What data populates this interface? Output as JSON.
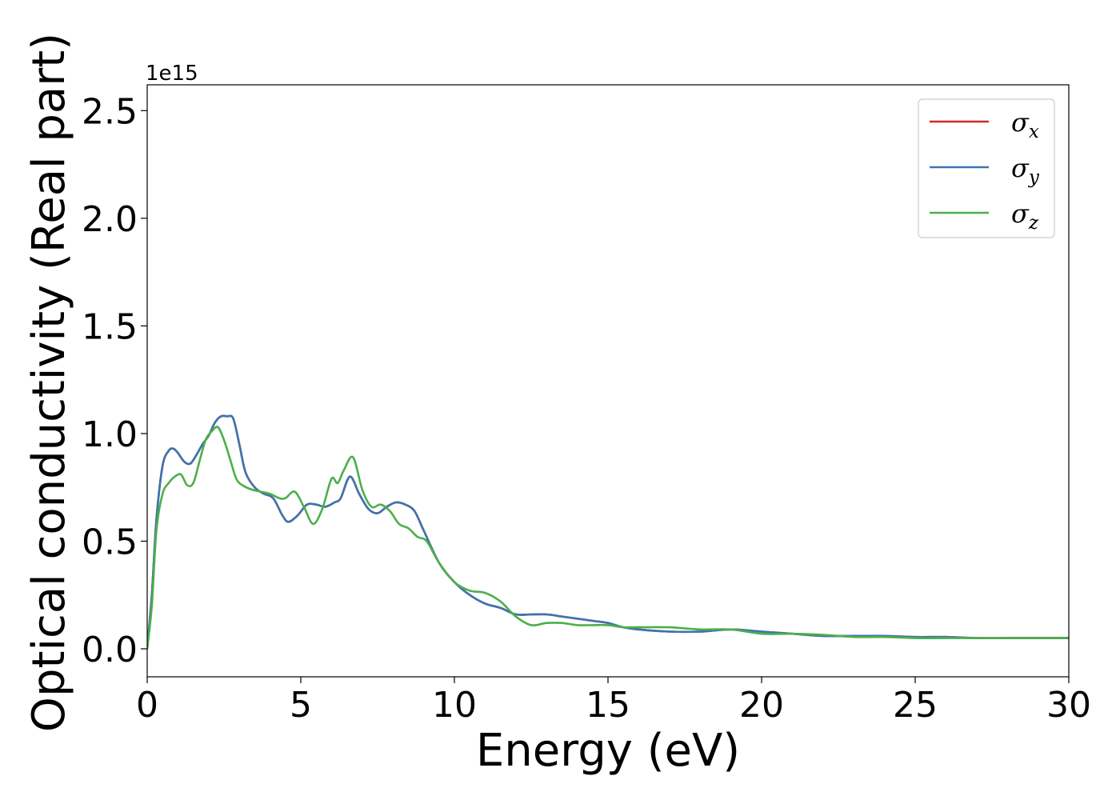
{
  "chart_data": {
    "type": "line",
    "xlabel": "Energy (eV)",
    "ylabel": "Optical conductivity (Real part)",
    "y_offset_text": "1e15",
    "xlim": [
      0,
      30
    ],
    "ylim": [
      -0.13,
      2.62
    ],
    "x_ticks": [
      0,
      5,
      10,
      15,
      20,
      25,
      30
    ],
    "x_tick_labels": [
      "0",
      "5",
      "10",
      "15",
      "20",
      "25",
      "30"
    ],
    "y_ticks": [
      0.0,
      0.5,
      1.0,
      1.5,
      2.0,
      2.5
    ],
    "y_tick_labels": [
      "0.0",
      "0.5",
      "1.0",
      "1.5",
      "2.0",
      "2.5"
    ],
    "grid": false,
    "legend_position": "top-right",
    "series": [
      {
        "name": "σx",
        "base": "σ",
        "sub": "x",
        "color": "#d62728",
        "x": [
          0,
          0.15,
          0.3,
          0.5,
          0.7,
          0.85,
          1.0,
          1.2,
          1.4,
          1.6,
          1.8,
          2.0,
          2.2,
          2.4,
          2.6,
          2.8,
          3.0,
          3.2,
          3.5,
          3.8,
          4.1,
          4.4,
          4.6,
          4.9,
          5.2,
          5.5,
          5.8,
          6.1,
          6.3,
          6.6,
          6.9,
          7.2,
          7.5,
          7.8,
          8.1,
          8.4,
          8.7,
          9.0,
          9.5,
          10.0,
          10.5,
          11.0,
          11.5,
          12.0,
          12.5,
          13.0,
          13.5,
          14.0,
          14.5,
          15.0,
          15.5,
          16.0,
          17.0,
          18.0,
          19.0,
          20.0,
          21.0,
          22.0,
          23.0,
          24.0,
          25.0,
          26.0,
          27.0,
          28.0,
          29.0,
          30.0
        ],
        "y": [
          0.0,
          0.25,
          0.6,
          0.85,
          0.92,
          0.93,
          0.91,
          0.87,
          0.86,
          0.9,
          0.95,
          0.99,
          1.05,
          1.08,
          1.08,
          1.07,
          0.95,
          0.82,
          0.75,
          0.72,
          0.7,
          0.62,
          0.59,
          0.62,
          0.67,
          0.67,
          0.66,
          0.68,
          0.7,
          0.8,
          0.72,
          0.65,
          0.63,
          0.66,
          0.68,
          0.67,
          0.64,
          0.55,
          0.4,
          0.31,
          0.25,
          0.21,
          0.19,
          0.16,
          0.16,
          0.16,
          0.15,
          0.14,
          0.13,
          0.12,
          0.1,
          0.09,
          0.08,
          0.08,
          0.09,
          0.08,
          0.07,
          0.06,
          0.06,
          0.06,
          0.055,
          0.055,
          0.05,
          0.05,
          0.05,
          0.05
        ]
      },
      {
        "name": "σy",
        "base": "σ",
        "sub": "y",
        "color": "#3b75af",
        "x": [
          0,
          0.15,
          0.3,
          0.5,
          0.7,
          0.85,
          1.0,
          1.2,
          1.4,
          1.6,
          1.8,
          2.0,
          2.2,
          2.4,
          2.6,
          2.8,
          3.0,
          3.2,
          3.5,
          3.8,
          4.1,
          4.4,
          4.6,
          4.9,
          5.2,
          5.5,
          5.8,
          6.1,
          6.3,
          6.6,
          6.9,
          7.2,
          7.5,
          7.8,
          8.1,
          8.4,
          8.7,
          9.0,
          9.5,
          10.0,
          10.5,
          11.0,
          11.5,
          12.0,
          12.5,
          13.0,
          13.5,
          14.0,
          14.5,
          15.0,
          15.5,
          16.0,
          17.0,
          18.0,
          19.0,
          20.0,
          21.0,
          22.0,
          23.0,
          24.0,
          25.0,
          26.0,
          27.0,
          28.0,
          29.0,
          30.0
        ],
        "y": [
          0.0,
          0.25,
          0.6,
          0.85,
          0.92,
          0.93,
          0.91,
          0.87,
          0.86,
          0.9,
          0.95,
          0.99,
          1.05,
          1.08,
          1.08,
          1.07,
          0.95,
          0.82,
          0.75,
          0.72,
          0.7,
          0.62,
          0.59,
          0.62,
          0.67,
          0.67,
          0.66,
          0.68,
          0.7,
          0.8,
          0.72,
          0.65,
          0.63,
          0.66,
          0.68,
          0.67,
          0.64,
          0.55,
          0.4,
          0.31,
          0.25,
          0.21,
          0.19,
          0.16,
          0.16,
          0.16,
          0.15,
          0.14,
          0.13,
          0.12,
          0.1,
          0.09,
          0.08,
          0.08,
          0.09,
          0.08,
          0.07,
          0.06,
          0.06,
          0.06,
          0.055,
          0.055,
          0.05,
          0.05,
          0.05,
          0.05
        ]
      },
      {
        "name": "σz",
        "base": "σ",
        "sub": "z",
        "color": "#4daf4a",
        "x": [
          0,
          0.15,
          0.3,
          0.5,
          0.7,
          0.9,
          1.1,
          1.3,
          1.5,
          1.7,
          1.9,
          2.1,
          2.3,
          2.5,
          2.7,
          2.9,
          3.1,
          3.4,
          3.7,
          4.0,
          4.3,
          4.5,
          4.8,
          5.1,
          5.4,
          5.7,
          6.0,
          6.2,
          6.4,
          6.7,
          7.0,
          7.3,
          7.6,
          7.9,
          8.2,
          8.5,
          8.8,
          9.1,
          9.5,
          10.0,
          10.5,
          11.0,
          11.5,
          12.0,
          12.5,
          13.0,
          13.5,
          14.0,
          14.5,
          15.0,
          15.5,
          16.0,
          17.0,
          18.0,
          19.0,
          20.0,
          21.0,
          22.0,
          23.0,
          24.0,
          25.0,
          26.0,
          27.0,
          28.0,
          29.0,
          30.0
        ],
        "y": [
          0.0,
          0.2,
          0.55,
          0.72,
          0.77,
          0.8,
          0.81,
          0.76,
          0.77,
          0.87,
          0.97,
          1.01,
          1.03,
          0.97,
          0.88,
          0.79,
          0.76,
          0.74,
          0.73,
          0.72,
          0.7,
          0.7,
          0.73,
          0.66,
          0.58,
          0.65,
          0.79,
          0.77,
          0.83,
          0.89,
          0.74,
          0.66,
          0.67,
          0.64,
          0.58,
          0.56,
          0.52,
          0.5,
          0.4,
          0.31,
          0.27,
          0.26,
          0.22,
          0.15,
          0.11,
          0.12,
          0.12,
          0.11,
          0.11,
          0.11,
          0.1,
          0.1,
          0.1,
          0.09,
          0.09,
          0.07,
          0.07,
          0.065,
          0.055,
          0.055,
          0.05,
          0.05,
          0.05,
          0.05,
          0.05,
          0.05
        ]
      }
    ]
  }
}
